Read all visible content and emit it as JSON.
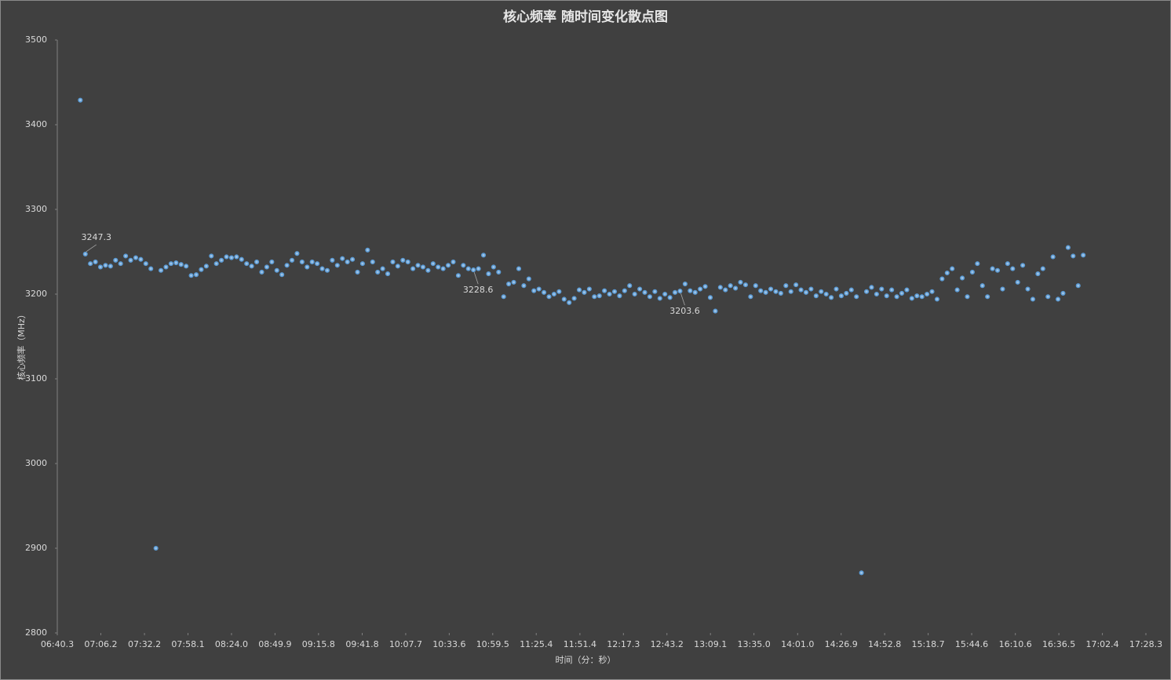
{
  "chart_data": {
    "type": "scatter",
    "title": "核心频率 随时间变化散点图",
    "xlabel": "时间（分：秒）",
    "ylabel": "核心频率（MHz）",
    "xlim": [
      400.3,
      1048.3
    ],
    "xticks": [
      {
        "value": 400.3,
        "label": "06:40.3"
      },
      {
        "value": 426.2,
        "label": "07:06.2"
      },
      {
        "value": 452.2,
        "label": "07:32.2"
      },
      {
        "value": 478.1,
        "label": "07:58.1"
      },
      {
        "value": 504.0,
        "label": "08:24.0"
      },
      {
        "value": 529.9,
        "label": "08:49.9"
      },
      {
        "value": 555.8,
        "label": "09:15.8"
      },
      {
        "value": 581.8,
        "label": "09:41.8"
      },
      {
        "value": 607.7,
        "label": "10:07.7"
      },
      {
        "value": 633.6,
        "label": "10:33.6"
      },
      {
        "value": 659.5,
        "label": "10:59.5"
      },
      {
        "value": 685.4,
        "label": "11:25.4"
      },
      {
        "value": 711.4,
        "label": "11:51.4"
      },
      {
        "value": 737.3,
        "label": "12:17.3"
      },
      {
        "value": 763.2,
        "label": "12:43.2"
      },
      {
        "value": 789.1,
        "label": "13:09.1"
      },
      {
        "value": 815.0,
        "label": "13:35.0"
      },
      {
        "value": 841.0,
        "label": "14:01.0"
      },
      {
        "value": 866.9,
        "label": "14:26.9"
      },
      {
        "value": 892.8,
        "label": "14:52.8"
      },
      {
        "value": 918.7,
        "label": "15:18.7"
      },
      {
        "value": 944.6,
        "label": "15:44.6"
      },
      {
        "value": 970.6,
        "label": "16:10.6"
      },
      {
        "value": 996.5,
        "label": "16:36.5"
      },
      {
        "value": 1022.4,
        "label": "17:02.4"
      },
      {
        "value": 1048.3,
        "label": "17:28.3"
      }
    ],
    "ylim": [
      2800,
      3500
    ],
    "yticks": [
      2800,
      2900,
      3000,
      3100,
      3200,
      3300,
      3400,
      3500
    ],
    "color": "#5b9bd5",
    "data_labels": [
      1,
      78,
      119
    ],
    "series": [
      {
        "x": [
          414,
          417,
          420,
          423,
          426,
          429,
          432,
          435,
          438,
          441,
          444,
          447,
          450,
          453,
          456,
          459,
          462,
          465,
          468,
          471,
          474,
          477,
          480,
          483,
          486,
          489,
          492,
          495,
          498,
          501,
          504,
          507,
          510,
          513,
          516,
          519,
          522,
          525,
          528,
          531,
          534,
          537,
          540,
          543,
          546,
          549,
          552,
          555,
          558,
          561,
          564,
          567,
          570,
          573,
          576,
          579,
          582,
          585,
          588,
          591,
          594,
          597,
          600,
          603,
          606,
          609,
          612,
          615,
          618,
          621,
          624,
          627,
          630,
          633,
          636,
          639,
          642,
          645,
          648,
          651,
          654,
          657,
          660,
          663,
          666,
          669,
          672,
          675,
          678,
          681,
          684,
          687,
          690,
          693,
          696,
          699,
          702,
          705,
          708,
          711,
          714,
          717,
          720,
          723,
          726,
          729,
          732,
          735,
          738,
          741,
          744,
          747,
          750,
          753,
          756,
          759,
          762,
          765,
          768,
          771,
          774,
          777,
          780,
          783,
          786,
          789,
          792,
          795,
          798,
          801,
          804,
          807,
          810,
          813,
          816,
          819,
          822,
          825,
          828,
          831,
          834,
          837,
          840,
          843,
          846,
          849,
          852,
          855,
          858,
          861,
          864,
          867,
          870,
          873,
          876,
          879,
          882,
          885,
          888,
          891,
          894,
          897,
          900,
          903,
          906,
          909,
          912,
          915,
          918,
          921,
          924,
          927,
          930,
          933,
          936,
          939,
          942,
          945,
          948,
          951,
          954,
          957,
          960,
          963,
          966,
          969,
          972,
          975,
          978,
          981,
          984,
          987,
          990,
          993,
          996,
          999,
          1002,
          1005,
          1008,
          1011
        ],
        "values": [
          3429,
          3247.3,
          3236,
          3238,
          3232,
          3234,
          3233,
          3240,
          3236,
          3245,
          3240,
          3243,
          3241,
          3236,
          3230,
          2900,
          3228,
          3232,
          3236,
          3237,
          3235,
          3233,
          3222,
          3223,
          3229,
          3233,
          3245,
          3236,
          3240,
          3244,
          3243,
          3244,
          3241,
          3236,
          3233,
          3238,
          3226,
          3232,
          3238,
          3228,
          3223,
          3234,
          3240,
          3248,
          3238,
          3232,
          3238,
          3236,
          3230,
          3228,
          3240,
          3234,
          3242,
          3238,
          3241,
          3226,
          3236,
          3252,
          3238,
          3226,
          3230,
          3224,
          3238,
          3233,
          3240,
          3238,
          3230,
          3234,
          3232,
          3228,
          3236,
          3232,
          3230,
          3234,
          3238,
          3222,
          3234,
          3230,
          3228.6,
          3230,
          3246,
          3224,
          3232,
          3226,
          3197,
          3212,
          3214,
          3230,
          3210,
          3218,
          3204,
          3206,
          3202,
          3197,
          3200,
          3203,
          3194,
          3190,
          3195,
          3205,
          3202,
          3206,
          3197,
          3198,
          3204,
          3200,
          3203,
          3198,
          3204,
          3210,
          3200,
          3206,
          3202,
          3197,
          3203,
          3195,
          3200,
          3196,
          3202,
          3203.6,
          3212,
          3204,
          3202,
          3206,
          3209,
          3196,
          3180,
          3208,
          3205,
          3210,
          3207,
          3214,
          3211,
          3197,
          3210,
          3204,
          3202,
          3206,
          3203,
          3201,
          3210,
          3203,
          3211,
          3205,
          3202,
          3206,
          3198,
          3203,
          3200,
          3196,
          3206,
          3198,
          3201,
          3205,
          3197,
          2871,
          3203,
          3208,
          3200,
          3206,
          3198,
          3205,
          3197,
          3201,
          3205,
          3195,
          3198,
          3197,
          3200,
          3203,
          3194,
          3218,
          3225,
          3230,
          3205,
          3219,
          3197,
          3226,
          3236,
          3210,
          3197,
          3230,
          3228,
          3206,
          3236,
          3230,
          3214,
          3234,
          3206,
          3194,
          3224,
          3230,
          3197,
          3244,
          3194,
          3201,
          3255,
          3245,
          3210,
          3246
        ]
      }
    ]
  }
}
